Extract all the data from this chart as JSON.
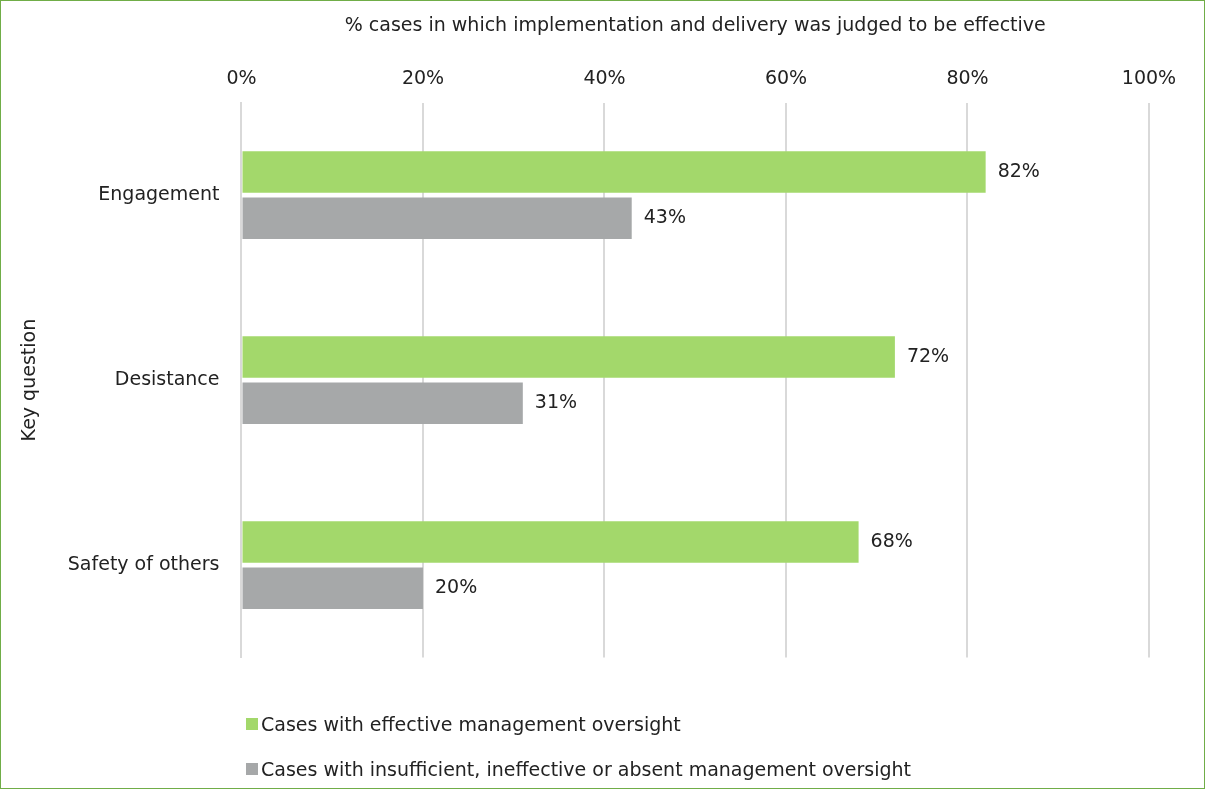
{
  "chart_data": {
    "type": "bar",
    "orientation": "horizontal",
    "xlabel": "% cases in which implementation and delivery was judged to be effective",
    "ylabel": "Key question",
    "categories": [
      "Engagement",
      "Desistance",
      "Safety of others"
    ],
    "series": [
      {
        "name": "Cases with effective management oversight",
        "color": "#a3d86b",
        "values": [
          82,
          72,
          68
        ],
        "value_labels": [
          "82%",
          "72%",
          "68%"
        ]
      },
      {
        "name": "Cases with insufficient, ineffective or absent management oversight",
        "color": "#a6a8a9",
        "values": [
          43,
          31,
          20
        ],
        "value_labels": [
          "43%",
          "31%",
          "20%"
        ]
      }
    ],
    "xlim": [
      0,
      100
    ],
    "xticks": [
      {
        "value": 0,
        "label": "0%"
      },
      {
        "value": 20,
        "label": "20%"
      },
      {
        "value": 40,
        "label": "40%"
      },
      {
        "value": 60,
        "label": "60%"
      },
      {
        "value": 80,
        "label": "80%"
      },
      {
        "value": 100,
        "label": "100%"
      }
    ],
    "grid": "x",
    "legend": "bottom"
  }
}
